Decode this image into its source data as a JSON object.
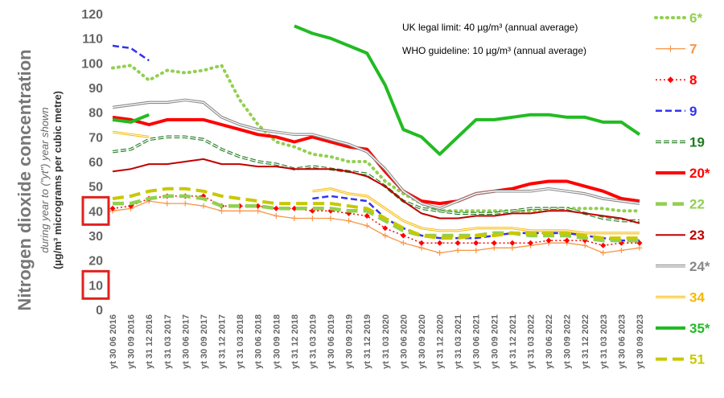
{
  "chart_data": {
    "type": "line",
    "ylabel_title": "Nitrogen dioxide concentration",
    "ylabel_sub": "during year to (\"yt\") year shown",
    "ylabel_units": "(µg/m³ micrograms per cubic metre)",
    "annotations": [
      "UK legal limit:  40 µg/m³ (annual average)",
      "WHO guideline:  10 µg/m³ (annual average)"
    ],
    "highlighted_ticks": [
      40,
      10
    ],
    "highlight_color": "#e0211d",
    "ylim": [
      0,
      120
    ],
    "yticks": [
      0,
      10,
      20,
      30,
      40,
      50,
      60,
      70,
      80,
      90,
      100,
      110,
      120
    ],
    "grid": false,
    "legend_position": "right",
    "x_labels": [
      "yt 30 06 2016",
      "yt 30 09 2016",
      "yt 31 12 2016",
      "yt 31 03 2017",
      "yt 30 06 2017",
      "yt 30 09 2017",
      "yt 31 12 2017",
      "yt 31 03 2018",
      "yt 30 06 2018",
      "yt 30 09 2018",
      "yt 31 12 2018",
      "yt 31 03 2019",
      "yt 30 06 2019",
      "yt 30 09 2019",
      "yt 31 12 2019",
      "yt 31 03 2020",
      "yt 30 06 2020",
      "yt 30 09 2020",
      "yt 31 12 2020",
      "yt 31 03 2021",
      "yt 30 06 2021",
      "yt 30 09 2021",
      "yt 31 12 2021",
      "yt 31 03 2022",
      "yt 30 06 2022",
      "yt 30 09 2022",
      "yt 31 12 2022",
      "yt 31 03 2023",
      "yt 30 06 2023",
      "yt 30 09 2023"
    ],
    "series": [
      {
        "name": "6*",
        "color": "#92d050",
        "style": "dotted",
        "width": 4,
        "values": [
          98,
          99,
          93,
          97,
          96,
          97,
          99,
          85,
          75,
          68,
          66,
          63,
          62,
          60,
          60,
          52,
          47,
          43,
          40,
          40,
          40,
          40,
          40,
          40,
          41,
          41,
          41,
          41,
          40,
          40
        ]
      },
      {
        "name": "7",
        "color": "#f79646",
        "style": "plus",
        "width": 1.3,
        "values": [
          40,
          41,
          44,
          43,
          43,
          42,
          40,
          40,
          40,
          38,
          37,
          37,
          37,
          36,
          34,
          30,
          27,
          25,
          23,
          24,
          24,
          25,
          25,
          26,
          27,
          27,
          26,
          23,
          24,
          25
        ]
      },
      {
        "name": "8",
        "color": "#ff0000",
        "style": "diamond",
        "width": 1.5,
        "values": [
          41,
          42,
          45,
          46,
          46,
          46,
          42,
          42,
          42,
          41,
          41,
          40,
          40,
          39,
          38,
          33,
          30,
          27,
          27,
          27,
          27,
          27,
          27,
          27,
          28,
          28,
          28,
          26,
          27,
          27
        ]
      },
      {
        "name": "9",
        "color": "#3333ee",
        "style": "dash",
        "width": 2.5,
        "values": [
          107,
          106,
          101,
          null,
          null,
          null,
          null,
          null,
          null,
          null,
          null,
          45,
          46,
          45,
          44,
          37,
          33,
          30,
          29,
          29,
          29,
          30,
          31,
          31,
          31,
          31,
          30,
          29,
          28,
          28
        ]
      },
      {
        "name": "19",
        "color": "#1e7b1e",
        "style": "hollow-dash",
        "width": 3.5,
        "values": [
          64,
          65,
          69,
          70,
          70,
          69,
          65,
          62,
          60,
          59,
          57,
          58,
          57,
          56,
          55,
          50,
          44,
          41,
          40,
          39,
          39,
          39,
          40,
          41,
          41,
          41,
          39,
          37,
          36,
          36
        ]
      },
      {
        "name": "20*",
        "color": "#ff0000",
        "style": "solid",
        "width": 4,
        "values": [
          78,
          77,
          75,
          77,
          77,
          77,
          75,
          73,
          71,
          70,
          68,
          70,
          68,
          66,
          65,
          56,
          48,
          44,
          43,
          44,
          47,
          48,
          49,
          51,
          52,
          52,
          50,
          48,
          45,
          44
        ]
      },
      {
        "name": "22",
        "color": "#92d050",
        "style": "longdash",
        "width": 4.5,
        "values": [
          43,
          43,
          45,
          46,
          46,
          45,
          42,
          42,
          42,
          41,
          41,
          41,
          41,
          40,
          40,
          36,
          32,
          30,
          30,
          30,
          30,
          31,
          31,
          30,
          30,
          30,
          29,
          28,
          28,
          28
        ]
      },
      {
        "name": "23",
        "color": "#c00000",
        "style": "solid",
        "width": 2,
        "values": [
          56,
          57,
          59,
          59,
          60,
          61,
          59,
          59,
          58,
          58,
          57,
          57,
          57,
          56,
          54,
          50,
          44,
          39,
          37,
          37,
          38,
          38,
          39,
          39,
          40,
          40,
          39,
          38,
          37,
          35
        ]
      },
      {
        "name": "24*",
        "color": "#888888",
        "style": "hollow",
        "width": 3.5,
        "values": [
          82,
          83,
          84,
          84,
          85,
          84,
          78,
          75,
          73,
          72,
          71,
          71,
          69,
          67,
          64,
          57,
          48,
          43,
          41,
          44,
          47,
          48,
          48,
          48,
          49,
          48,
          47,
          45,
          44,
          43
        ]
      },
      {
        "name": "34",
        "color": "#f5b800",
        "style": "hollow",
        "width": 3,
        "values": [
          72,
          71,
          70,
          null,
          null,
          null,
          null,
          null,
          null,
          null,
          null,
          48,
          49,
          47,
          46,
          41,
          36,
          33,
          32,
          32,
          33,
          33,
          33,
          32,
          32,
          32,
          31,
          31,
          31,
          31
        ]
      },
      {
        "name": "35*",
        "color": "#22bb22",
        "style": "solid",
        "width": 4,
        "values": [
          77,
          76,
          79,
          null,
          null,
          null,
          null,
          null,
          null,
          null,
          115,
          112,
          110,
          107,
          104,
          91,
          73,
          70,
          63,
          70,
          77,
          77,
          78,
          79,
          79,
          78,
          78,
          76,
          76,
          71
        ]
      },
      {
        "name": "51",
        "color": "#c8c800",
        "style": "longdash",
        "width": 4,
        "values": [
          45,
          46,
          48,
          49,
          49,
          48,
          46,
          45,
          44,
          43,
          43,
          43,
          43,
          42,
          41,
          37,
          33,
          30,
          29,
          29,
          30,
          30,
          31,
          31,
          31,
          31,
          30,
          29,
          29,
          29
        ]
      }
    ]
  }
}
